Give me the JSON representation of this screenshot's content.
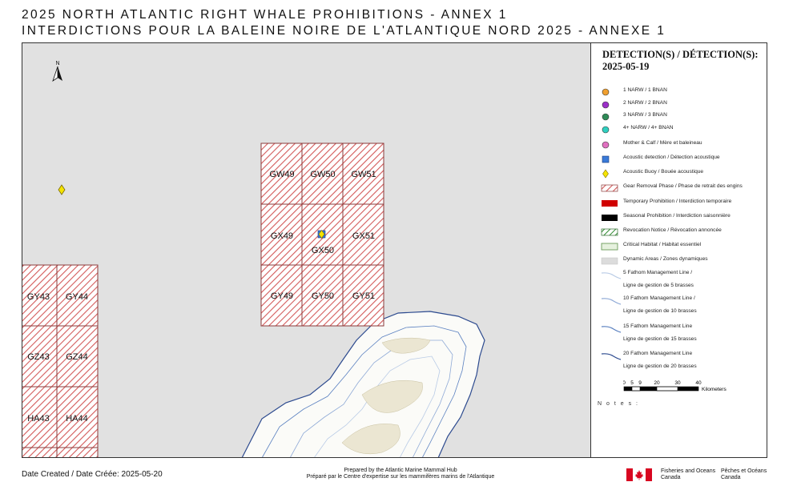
{
  "header": {
    "title_en": "2025 NORTH ATLANTIC RIGHT WHALE PROHIBITIONS - ANNEX 1",
    "title_fr": "INTERDICTIONS POUR LA BALEINE NOIRE DE L'ATLANTIQUE NORD 2025 - ANNEXE 1"
  },
  "map": {
    "north_label": "N",
    "colors": {
      "background": "#e1e1e1",
      "land": "#fbfbf8",
      "hatch": "#d35a5a",
      "grid_line": "#8a3a3a",
      "coast": "#2c4a8f",
      "buoy": "#f5e400"
    },
    "grid_cells_right": [
      [
        "GW49",
        "GW50",
        "GW51"
      ],
      [
        "GX49",
        "GX50",
        "GX51"
      ],
      [
        "GY49",
        "GY50",
        "GY51"
      ]
    ],
    "grid_cells_left": [
      [
        "GY43",
        "GY44"
      ],
      [
        "GZ43",
        "GZ44"
      ],
      [
        "HA43",
        "HA44"
      ]
    ]
  },
  "legend": {
    "title": "DETECTION(S) / DÉTECTION(S): 2025-05-19",
    "items": [
      {
        "label": "1 NARW / 1 BNAN",
        "symbol": "dot",
        "color": "#f0a030"
      },
      {
        "label": "2 NARW / 2 BNAN",
        "symbol": "dot",
        "color": "#9b30c8"
      },
      {
        "label": "3 NARW / 3 BNAN",
        "symbol": "dot",
        "color": "#2e8b57"
      },
      {
        "label": "4+ NARW / 4+ BNAN",
        "symbol": "dot",
        "color": "#30d0c0"
      },
      {
        "label": "Mother & Calf / Mère et baleineau",
        "symbol": "dot",
        "color": "#e070c0"
      },
      {
        "label": "Acoustic detection / Détection acoustique",
        "symbol": "square",
        "color": "#3a7ad8"
      },
      {
        "label": "Acoustic Buoy / Bouée acoustique",
        "symbol": "diamond",
        "color": "#f5e400"
      },
      {
        "label": "Gear Removal Phase / Phase de retrait des engins",
        "symbol": "hatch",
        "color": "#d35a5a"
      },
      {
        "label": "Temporary Prohibition / Interdiction temporaire",
        "symbol": "fill",
        "color": "#d00000"
      },
      {
        "label": "Seasonal Prohibition / Interdiction saisonnière",
        "symbol": "fill",
        "color": "#000000"
      },
      {
        "label": "Revocation Notice / Révocation annoncée",
        "symbol": "greenhatch",
        "color": "#2e8b2e"
      },
      {
        "label": "Critical Habitat / Habitat essentiel",
        "symbol": "outline",
        "color": "#6a9a5a"
      },
      {
        "label": "Dynamic Areas / Zones dynamiques",
        "symbol": "grayfill",
        "color": "#dcdcdc"
      }
    ],
    "lines": [
      {
        "label1": "5 Fathom Management Line /",
        "label2": "Ligne de gestion de 5 brasses",
        "color": "#b9cbe6"
      },
      {
        "label1": "10 Fathom Management Line /",
        "label2": "Ligne de gestion de 10 brasses",
        "color": "#8ea9d6"
      },
      {
        "label1": "15 Fathom Management Line",
        "label2": "Ligne de gestion de 15 brasses",
        "color": "#5a80c0"
      },
      {
        "label1": "20 Fathom Management Line",
        "label2": "Ligne de gestion de 20 brasses",
        "color": "#2c4a8f"
      }
    ],
    "scale": {
      "ticks": [
        "0",
        "5",
        "9",
        "20",
        "30",
        "40"
      ],
      "unit": "Kilometers"
    },
    "notes_label": "N o t e s :"
  },
  "footer": {
    "date_created": "Date Created / Date Créée: 2025-05-20",
    "prepared_en": "Prepared by the Atlantic Marine Mammal Hub",
    "prepared_fr": "Préparé par le Centre d'expertise sur les mammifères marins de l'Atlantique",
    "dfo_en_1": "Fisheries and Oceans",
    "dfo_en_2": "Canada",
    "dfo_fr_1": "Pêches et Océans",
    "dfo_fr_2": "Canada"
  }
}
